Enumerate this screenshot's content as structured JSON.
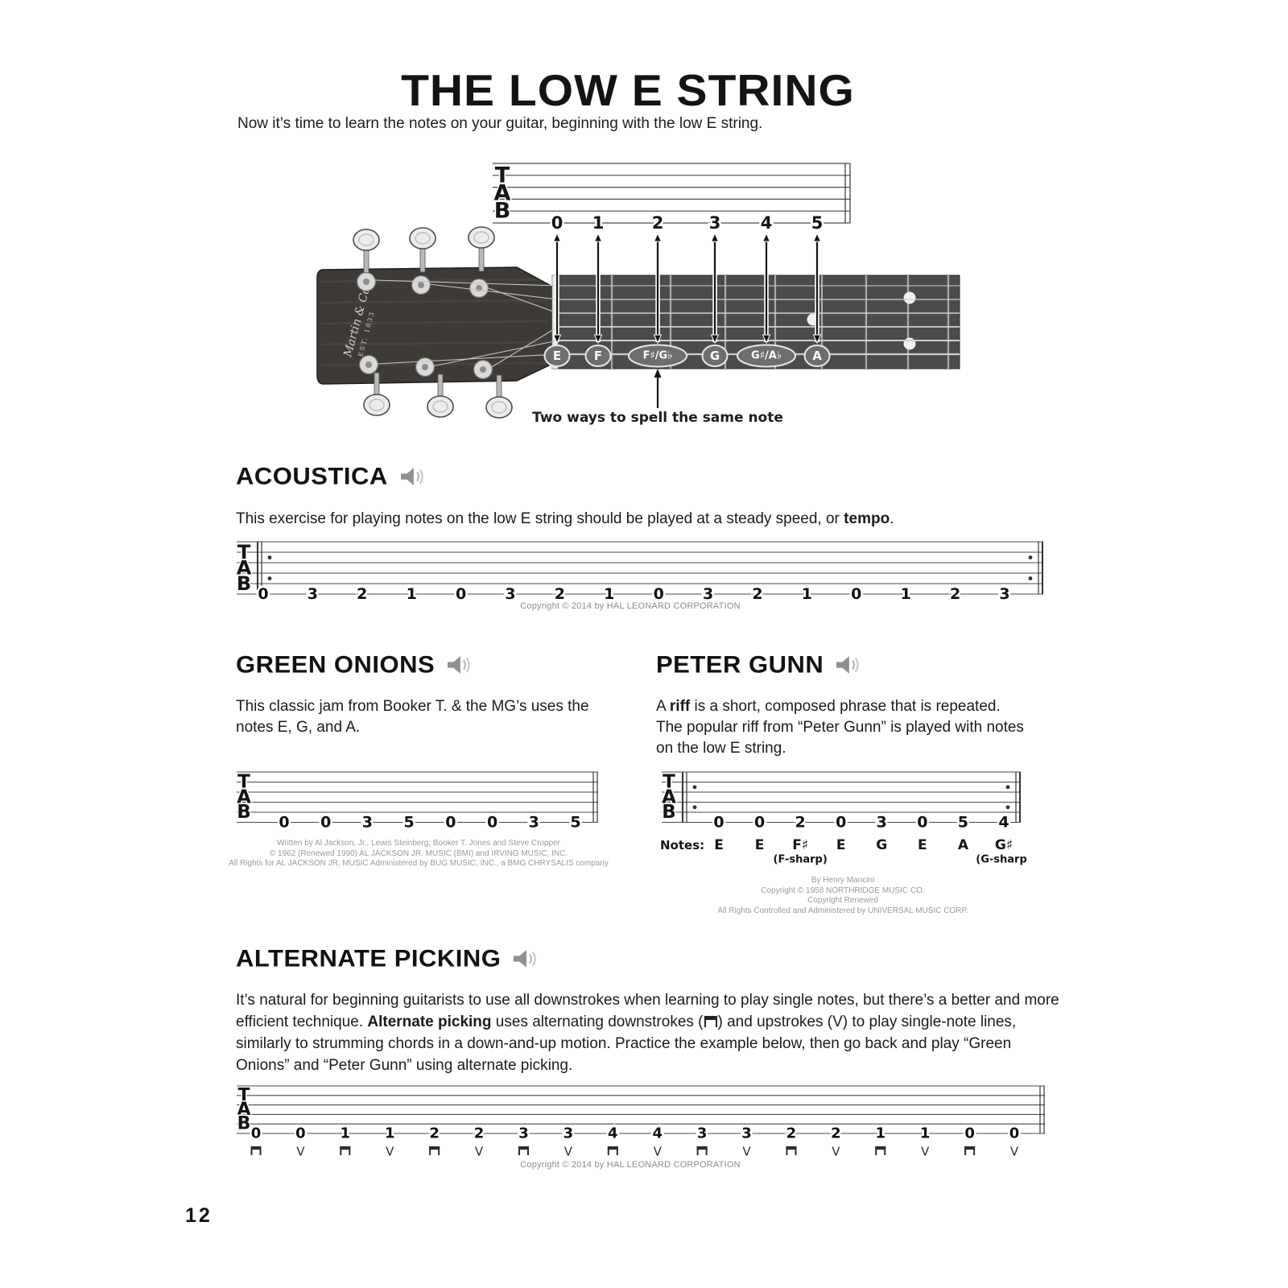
{
  "page": {
    "title": "THE LOW E STRING",
    "intro": "Now it’s time to learn the notes on your guitar, beginning with the low E string.",
    "page_number": "12",
    "tab_clef": [
      "T",
      "A",
      "B"
    ]
  },
  "diagram": {
    "fret_numbers": [
      "0",
      "1",
      "2",
      "3",
      "4",
      "5"
    ],
    "note_labels": [
      "E",
      "F",
      "F♯/G♭",
      "G",
      "G♯/A♭",
      "A"
    ],
    "caption": "Two ways to spell the same note",
    "headstock_brand": "Martin & Co",
    "headstock_est": "EST. 1833"
  },
  "sections": {
    "acoustica": {
      "title": "ACOUSTICA",
      "desc_pre": "This exercise for playing notes on the low E string should be played at a steady speed, or ",
      "desc_bold": "tempo",
      "desc_post": ".",
      "tab_numbers": [
        "0",
        "3",
        "2",
        "1",
        "0",
        "3",
        "2",
        "1",
        "0",
        "3",
        "2",
        "1",
        "0",
        "1",
        "2",
        "3"
      ],
      "copyright": "Copyright © 2014 by HAL LEONARD CORPORATION"
    },
    "green_onions": {
      "title": "GREEN ONIONS",
      "description": "This classic jam from Booker T. & the MG’s uses the notes E, G, and A.",
      "tab_numbers": [
        "0",
        "0",
        "3",
        "5",
        "0",
        "0",
        "3",
        "5"
      ],
      "credits": [
        "Written by Al Jackson, Jr., Lewis Steinberg, Booker T. Jones and Steve Cropper",
        "© 1962 (Renewed 1990) AL JACKSON JR. MUSIC (BMI) and IRVING MUSIC, INC.",
        "All Rights for AL JACKSON JR. MUSIC Administered by BUG MUSIC, INC., a BMG CHRYSALIS company"
      ]
    },
    "peter_gunn": {
      "title": "PETER GUNN",
      "desc_pre": "A ",
      "desc_bold": "riff",
      "desc_post": " is a short, composed phrase that is repeated. The popular riff from “Peter Gunn” is played with notes on the low E string.",
      "tab_numbers": [
        "0",
        "0",
        "2",
        "0",
        "3",
        "0",
        "5",
        "4"
      ],
      "notes_label": "Notes:",
      "notes": [
        "E",
        "E",
        "F♯",
        "E",
        "G",
        "E",
        "A",
        "G♯"
      ],
      "note_sublabels": {
        "2": "(F-sharp)",
        "7": "(G-sharp)"
      },
      "credits": [
        "By Henry Mancini",
        "Copyright © 1958 NORTHRIDGE MUSIC CO.",
        "Copyright Renewed",
        "All Rights Controlled and Administered by UNIVERSAL MUSIC CORP."
      ]
    },
    "alternate_picking": {
      "title": "ALTERNATE PICKING",
      "desc_p1": "It’s natural for beginning guitarists to use all downstrokes when learning to play single notes, but there’s a better and more efficient technique. ",
      "desc_bold": "Alternate picking",
      "desc_p2": " uses alternating downstrokes (",
      "desc_p3": ") and upstrokes (",
      "upstroke_symbol": "V",
      "desc_p4": ") to play single-note lines, similarly to strumming chords in a down-and-up motion. Practice the example below, then go back and play “Green Onions” and “Peter Gunn” using alternate picking.",
      "tab_numbers": [
        "0",
        "0",
        "1",
        "1",
        "2",
        "2",
        "3",
        "3",
        "4",
        "4",
        "3",
        "3",
        "2",
        "2",
        "1",
        "1",
        "0",
        "0"
      ],
      "picking": [
        "down",
        "up",
        "down",
        "up",
        "down",
        "up",
        "down",
        "up",
        "down",
        "up",
        "down",
        "up",
        "down",
        "up",
        "down",
        "up",
        "down",
        "up"
      ],
      "copyright": "Copyright © 2014 by HAL LEONARD CORPORATION"
    }
  }
}
